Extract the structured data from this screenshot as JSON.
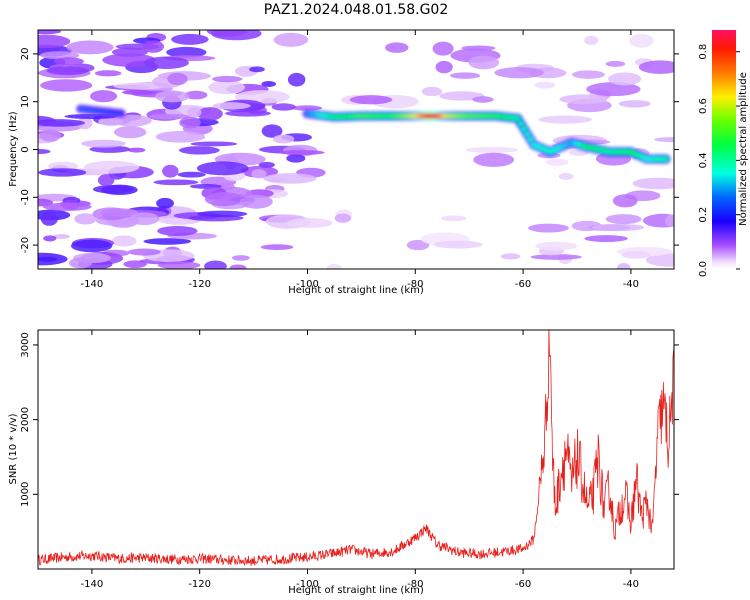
{
  "title": "PAZ1.2024.048.01.58.G02",
  "chart_data": [
    {
      "type": "heatmap",
      "xlabel": "Height of straight line (km)",
      "ylabel": "Frequency (Hz)",
      "xlim": [
        -150,
        -32
      ],
      "ylim": [
        -25,
        25
      ],
      "xticks": [
        -140,
        -120,
        -100,
        -80,
        -60,
        -40
      ],
      "yticks": [
        -20,
        -10,
        0,
        10,
        20
      ],
      "colorbar": {
        "label": "Normalized spectral amplitude",
        "ticks": [
          0.0,
          0.2,
          0.4,
          0.6,
          0.8
        ],
        "range": [
          0,
          0.88
        ],
        "colormap": "gist_rainbow_r"
      },
      "ridge": [
        {
          "x": -142,
          "y": 8.5,
          "amp": 0.26
        },
        {
          "x": -134,
          "y": 7.5,
          "amp": 0.22
        },
        {
          "x": -100,
          "y": 7.5,
          "amp": 0.28
        },
        {
          "x": -95,
          "y": 6.8,
          "amp": 0.42
        },
        {
          "x": -90,
          "y": 7.0,
          "amp": 0.5
        },
        {
          "x": -85,
          "y": 7.0,
          "amp": 0.46
        },
        {
          "x": -80,
          "y": 7.0,
          "amp": 0.62
        },
        {
          "x": -77,
          "y": 7.0,
          "amp": 0.86
        },
        {
          "x": -74,
          "y": 7.0,
          "amp": 0.6
        },
        {
          "x": -70,
          "y": 7.0,
          "amp": 0.52
        },
        {
          "x": -65,
          "y": 7.0,
          "amp": 0.48
        },
        {
          "x": -61,
          "y": 6.5,
          "amp": 0.4
        },
        {
          "x": -58,
          "y": 1.0,
          "amp": 0.35
        },
        {
          "x": -55,
          "y": -0.5,
          "amp": 0.38
        },
        {
          "x": -51,
          "y": 1.5,
          "amp": 0.3
        },
        {
          "x": -48,
          "y": 0.5,
          "amp": 0.45
        },
        {
          "x": -44,
          "y": -0.5,
          "amp": 0.4
        },
        {
          "x": -40,
          "y": -0.5,
          "amp": 0.46
        },
        {
          "x": -37,
          "y": -2.0,
          "amp": 0.35
        },
        {
          "x": -33,
          "y": -2.0,
          "amp": 0.4
        }
      ]
    },
    {
      "type": "line",
      "xlabel": "Height of straight line (km)",
      "ylabel": "SNR (10 * v/v)",
      "xlim": [
        -150,
        -32
      ],
      "ylim": [
        0,
        3200
      ],
      "xticks": [
        -140,
        -120,
        -100,
        -80,
        -60,
        -40
      ],
      "yticks": [
        1000,
        2000,
        3000
      ],
      "series": [
        {
          "color": "#e8201c",
          "x": [
            -150,
            -145,
            -140,
            -135,
            -130,
            -125,
            -120,
            -115,
            -110,
            -105,
            -100,
            -95,
            -92,
            -88,
            -84,
            -80,
            -78,
            -76,
            -72,
            -68,
            -64,
            -60,
            -58,
            -57,
            -56,
            -55.5,
            -55,
            -54.5,
            -54,
            -53,
            -52,
            -51,
            -50,
            -49,
            -48,
            -47,
            -46,
            -45,
            -44,
            -43,
            -42,
            -41,
            -40,
            -39,
            -38,
            -37,
            -36,
            -35,
            -34,
            -33,
            -32
          ],
          "y": [
            120,
            160,
            180,
            140,
            150,
            130,
            140,
            120,
            110,
            130,
            160,
            210,
            260,
            200,
            240,
            420,
            550,
            330,
            220,
            200,
            230,
            270,
            400,
            1000,
            1700,
            2400,
            3150,
            1400,
            800,
            1300,
            1600,
            1100,
            1500,
            1200,
            800,
            1000,
            1500,
            800,
            1100,
            500,
            800,
            1000,
            600,
            1200,
            700,
            900,
            500,
            1800,
            2200,
            1700,
            2600
          ]
        }
      ]
    }
  ]
}
